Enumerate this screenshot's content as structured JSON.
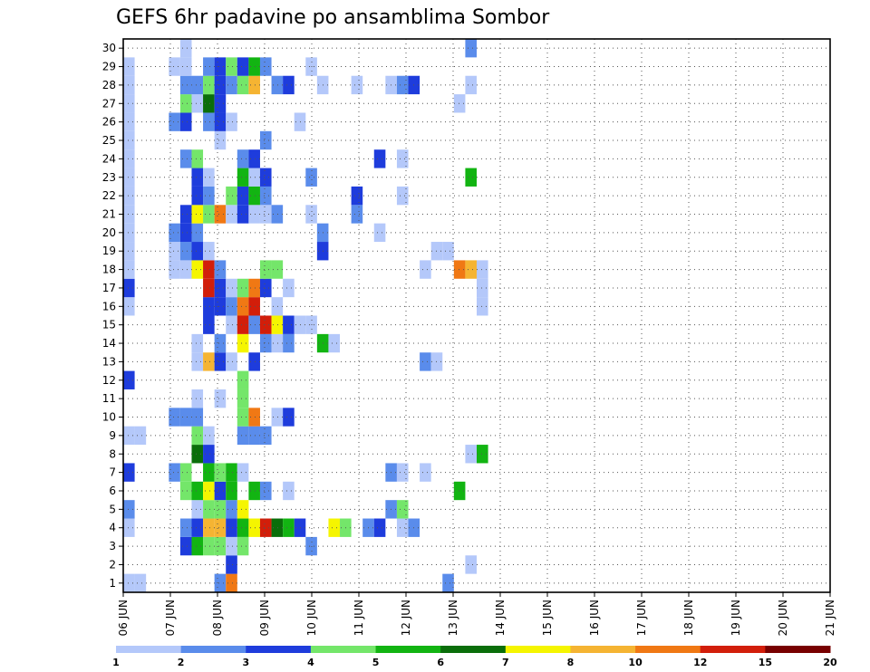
{
  "chart_data": {
    "type": "heatmap",
    "title": "GEFS 6hr padavine po ansamblima Sombor",
    "xlabel": "",
    "ylabel": "",
    "y_ticks": [
      "1",
      "2",
      "3",
      "4",
      "5",
      "6",
      "7",
      "8",
      "9",
      "10",
      "11",
      "12",
      "13",
      "14",
      "15",
      "16",
      "17",
      "18",
      "19",
      "20",
      "21",
      "22",
      "23",
      "24",
      "25",
      "26",
      "27",
      "28",
      "29",
      "30"
    ],
    "x_ticks": [
      "06 JUN",
      "07 JUN",
      "08 JUN",
      "09 JUN",
      "10 JUN",
      "11 JUN",
      "12 JUN",
      "13 JUN",
      "14 JUN",
      "15 JUN",
      "16 JUN",
      "17 JUN",
      "18 JUN",
      "19 JUN",
      "20 JUN",
      "21 JUN"
    ],
    "x_range_days": [
      0,
      15
    ],
    "steps_per_day": 4,
    "y_range": [
      0,
      30
    ],
    "grid": true,
    "colorbar": {
      "labels": [
        "1",
        "2",
        "3",
        "4",
        "5",
        "6",
        "7",
        "8",
        "10",
        "12",
        "15",
        "20"
      ],
      "colors": [
        "#b4c8fa",
        "#5a8ceb",
        "#1e3cdc",
        "#74e66a",
        "#12b412",
        "#0a6e0a",
        "#f5f500",
        "#f5b432",
        "#f07814",
        "#d21e0a",
        "#780000"
      ]
    },
    "cells": [
      {
        "member": 0,
        "step": 0,
        "level": 1
      },
      {
        "member": 0,
        "step": 1,
        "level": 1
      },
      {
        "member": 0,
        "step": 8,
        "level": 2
      },
      {
        "member": 0,
        "step": 9,
        "level": 10
      },
      {
        "member": 0,
        "step": 28,
        "level": 2
      },
      {
        "member": 1,
        "step": 9,
        "level": 3
      },
      {
        "member": 1,
        "step": 30,
        "level": 1
      },
      {
        "member": 2,
        "step": 5,
        "level": 3
      },
      {
        "member": 2,
        "step": 6,
        "level": 5
      },
      {
        "member": 2,
        "step": 7,
        "level": 4
      },
      {
        "member": 2,
        "step": 8,
        "level": 4
      },
      {
        "member": 2,
        "step": 9,
        "level": 1
      },
      {
        "member": 2,
        "step": 10,
        "level": 4
      },
      {
        "member": 2,
        "step": 16,
        "level": 2
      },
      {
        "member": 3,
        "step": 0,
        "level": 1
      },
      {
        "member": 3,
        "step": 5,
        "level": 2
      },
      {
        "member": 3,
        "step": 6,
        "level": 3
      },
      {
        "member": 3,
        "step": 7,
        "level": 8
      },
      {
        "member": 3,
        "step": 8,
        "level": 8
      },
      {
        "member": 3,
        "step": 9,
        "level": 3
      },
      {
        "member": 3,
        "step": 10,
        "level": 5
      },
      {
        "member": 3,
        "step": 11,
        "level": 7
      },
      {
        "member": 3,
        "step": 12,
        "level": 14
      },
      {
        "member": 3,
        "step": 13,
        "level": 6
      },
      {
        "member": 3,
        "step": 14,
        "level": 5
      },
      {
        "member": 3,
        "step": 15,
        "level": 3
      },
      {
        "member": 3,
        "step": 18,
        "level": 7
      },
      {
        "member": 3,
        "step": 19,
        "level": 4
      },
      {
        "member": 3,
        "step": 21,
        "level": 2
      },
      {
        "member": 3,
        "step": 22,
        "level": 3
      },
      {
        "member": 3,
        "step": 24,
        "level": 1
      },
      {
        "member": 3,
        "step": 25,
        "level": 2
      },
      {
        "member": 4,
        "step": 0,
        "level": 2
      },
      {
        "member": 4,
        "step": 6,
        "level": 1
      },
      {
        "member": 4,
        "step": 7,
        "level": 4
      },
      {
        "member": 4,
        "step": 8,
        "level": 4
      },
      {
        "member": 4,
        "step": 9,
        "level": 2
      },
      {
        "member": 4,
        "step": 10,
        "level": 7
      },
      {
        "member": 4,
        "step": 23,
        "level": 2
      },
      {
        "member": 4,
        "step": 24,
        "level": 4
      },
      {
        "member": 5,
        "step": 5,
        "level": 4
      },
      {
        "member": 5,
        "step": 6,
        "level": 5
      },
      {
        "member": 5,
        "step": 7,
        "level": 7
      },
      {
        "member": 5,
        "step": 8,
        "level": 3
      },
      {
        "member": 5,
        "step": 9,
        "level": 5
      },
      {
        "member": 5,
        "step": 11,
        "level": 5
      },
      {
        "member": 5,
        "step": 12,
        "level": 2
      },
      {
        "member": 5,
        "step": 14,
        "level": 1
      },
      {
        "member": 5,
        "step": 29,
        "level": 5
      },
      {
        "member": 6,
        "step": 0,
        "level": 3
      },
      {
        "member": 6,
        "step": 4,
        "level": 2
      },
      {
        "member": 6,
        "step": 5,
        "level": 4
      },
      {
        "member": 6,
        "step": 7,
        "level": 5
      },
      {
        "member": 6,
        "step": 8,
        "level": 4
      },
      {
        "member": 6,
        "step": 9,
        "level": 5
      },
      {
        "member": 6,
        "step": 10,
        "level": 1
      },
      {
        "member": 6,
        "step": 23,
        "level": 2
      },
      {
        "member": 6,
        "step": 24,
        "level": 1
      },
      {
        "member": 6,
        "step": 26,
        "level": 1
      },
      {
        "member": 7,
        "step": 6,
        "level": 6
      },
      {
        "member": 7,
        "step": 7,
        "level": 3
      },
      {
        "member": 7,
        "step": 30,
        "level": 1
      },
      {
        "member": 7,
        "step": 31,
        "level": 5
      },
      {
        "member": 8,
        "step": 0,
        "level": 1
      },
      {
        "member": 8,
        "step": 1,
        "level": 1
      },
      {
        "member": 8,
        "step": 6,
        "level": 4
      },
      {
        "member": 8,
        "step": 7,
        "level": 1
      },
      {
        "member": 8,
        "step": 10,
        "level": 2
      },
      {
        "member": 8,
        "step": 11,
        "level": 2
      },
      {
        "member": 8,
        "step": 12,
        "level": 2
      },
      {
        "member": 9,
        "step": 4,
        "level": 2
      },
      {
        "member": 9,
        "step": 5,
        "level": 2
      },
      {
        "member": 9,
        "step": 6,
        "level": 2
      },
      {
        "member": 9,
        "step": 10,
        "level": 4
      },
      {
        "member": 9,
        "step": 11,
        "level": 10
      },
      {
        "member": 9,
        "step": 13,
        "level": 1
      },
      {
        "member": 9,
        "step": 14,
        "level": 3
      },
      {
        "member": 10,
        "step": 6,
        "level": 1
      },
      {
        "member": 10,
        "step": 8,
        "level": 1
      },
      {
        "member": 10,
        "step": 10,
        "level": 4
      },
      {
        "member": 11,
        "step": 0,
        "level": 3
      },
      {
        "member": 11,
        "step": 10,
        "level": 4
      },
      {
        "member": 12,
        "step": 6,
        "level": 1
      },
      {
        "member": 12,
        "step": 7,
        "level": 8
      },
      {
        "member": 12,
        "step": 8,
        "level": 3
      },
      {
        "member": 12,
        "step": 9,
        "level": 1
      },
      {
        "member": 12,
        "step": 11,
        "level": 3
      },
      {
        "member": 12,
        "step": 26,
        "level": 2
      },
      {
        "member": 12,
        "step": 27,
        "level": 1
      },
      {
        "member": 13,
        "step": 6,
        "level": 1
      },
      {
        "member": 13,
        "step": 8,
        "level": 2
      },
      {
        "member": 13,
        "step": 10,
        "level": 7
      },
      {
        "member": 13,
        "step": 12,
        "level": 2
      },
      {
        "member": 13,
        "step": 13,
        "level": 1
      },
      {
        "member": 13,
        "step": 14,
        "level": 2
      },
      {
        "member": 13,
        "step": 17,
        "level": 5
      },
      {
        "member": 13,
        "step": 18,
        "level": 1
      },
      {
        "member": 14,
        "step": 7,
        "level": 3
      },
      {
        "member": 14,
        "step": 9,
        "level": 1
      },
      {
        "member": 14,
        "step": 10,
        "level": 14
      },
      {
        "member": 14,
        "step": 11,
        "level": 2
      },
      {
        "member": 14,
        "step": 12,
        "level": 13
      },
      {
        "member": 14,
        "step": 13,
        "level": 7
      },
      {
        "member": 14,
        "step": 14,
        "level": 3
      },
      {
        "member": 14,
        "step": 15,
        "level": 1
      },
      {
        "member": 14,
        "step": 16,
        "level": 1
      },
      {
        "member": 15,
        "step": 0,
        "level": 1
      },
      {
        "member": 15,
        "step": 7,
        "level": 3
      },
      {
        "member": 15,
        "step": 8,
        "level": 3
      },
      {
        "member": 15,
        "step": 9,
        "level": 2
      },
      {
        "member": 15,
        "step": 10,
        "level": 10
      },
      {
        "member": 15,
        "step": 11,
        "level": 12
      },
      {
        "member": 15,
        "step": 13,
        "level": 1
      },
      {
        "member": 15,
        "step": 31,
        "level": 1
      },
      {
        "member": 16,
        "step": 0,
        "level": 3
      },
      {
        "member": 16,
        "step": 7,
        "level": 12
      },
      {
        "member": 16,
        "step": 8,
        "level": 3
      },
      {
        "member": 16,
        "step": 9,
        "level": 1
      },
      {
        "member": 16,
        "step": 10,
        "level": 4
      },
      {
        "member": 16,
        "step": 11,
        "level": 11
      },
      {
        "member": 16,
        "step": 12,
        "level": 3
      },
      {
        "member": 16,
        "step": 14,
        "level": 1
      },
      {
        "member": 16,
        "step": 31,
        "level": 1
      },
      {
        "member": 17,
        "step": 0,
        "level": 1
      },
      {
        "member": 17,
        "step": 4,
        "level": 1
      },
      {
        "member": 17,
        "step": 5,
        "level": 1
      },
      {
        "member": 17,
        "step": 6,
        "level": 7
      },
      {
        "member": 17,
        "step": 7,
        "level": 12
      },
      {
        "member": 17,
        "step": 8,
        "level": 2
      },
      {
        "member": 17,
        "step": 12,
        "level": 4
      },
      {
        "member": 17,
        "step": 13,
        "level": 4
      },
      {
        "member": 17,
        "step": 26,
        "level": 1
      },
      {
        "member": 17,
        "step": 29,
        "level": 10
      },
      {
        "member": 17,
        "step": 30,
        "level": 8
      },
      {
        "member": 17,
        "step": 31,
        "level": 1
      },
      {
        "member": 18,
        "step": 0,
        "level": 1
      },
      {
        "member": 18,
        "step": 4,
        "level": 1
      },
      {
        "member": 18,
        "step": 5,
        "level": 2
      },
      {
        "member": 18,
        "step": 6,
        "level": 3
      },
      {
        "member": 18,
        "step": 7,
        "level": 1
      },
      {
        "member": 18,
        "step": 17,
        "level": 3
      },
      {
        "member": 18,
        "step": 27,
        "level": 1
      },
      {
        "member": 18,
        "step": 28,
        "level": 1
      },
      {
        "member": 19,
        "step": 0,
        "level": 1
      },
      {
        "member": 19,
        "step": 4,
        "level": 2
      },
      {
        "member": 19,
        "step": 5,
        "level": 3
      },
      {
        "member": 19,
        "step": 6,
        "level": 2
      },
      {
        "member": 19,
        "step": 17,
        "level": 2
      },
      {
        "member": 19,
        "step": 22,
        "level": 1
      },
      {
        "member": 20,
        "step": 0,
        "level": 1
      },
      {
        "member": 20,
        "step": 5,
        "level": 3
      },
      {
        "member": 20,
        "step": 6,
        "level": 7
      },
      {
        "member": 20,
        "step": 7,
        "level": 4
      },
      {
        "member": 20,
        "step": 8,
        "level": 10
      },
      {
        "member": 20,
        "step": 9,
        "level": 1
      },
      {
        "member": 20,
        "step": 10,
        "level": 3
      },
      {
        "member": 20,
        "step": 11,
        "level": 1
      },
      {
        "member": 20,
        "step": 12,
        "level": 1
      },
      {
        "member": 20,
        "step": 13,
        "level": 2
      },
      {
        "member": 20,
        "step": 16,
        "level": 1
      },
      {
        "member": 20,
        "step": 20,
        "level": 2
      },
      {
        "member": 21,
        "step": 0,
        "level": 1
      },
      {
        "member": 21,
        "step": 6,
        "level": 3
      },
      {
        "member": 21,
        "step": 7,
        "level": 2
      },
      {
        "member": 21,
        "step": 9,
        "level": 4
      },
      {
        "member": 21,
        "step": 10,
        "level": 3
      },
      {
        "member": 21,
        "step": 11,
        "level": 5
      },
      {
        "member": 21,
        "step": 12,
        "level": 2
      },
      {
        "member": 21,
        "step": 20,
        "level": 3
      },
      {
        "member": 21,
        "step": 24,
        "level": 1
      },
      {
        "member": 22,
        "step": 0,
        "level": 1
      },
      {
        "member": 22,
        "step": 6,
        "level": 3
      },
      {
        "member": 22,
        "step": 7,
        "level": 1
      },
      {
        "member": 22,
        "step": 10,
        "level": 5
      },
      {
        "member": 22,
        "step": 11,
        "level": 1
      },
      {
        "member": 22,
        "step": 12,
        "level": 3
      },
      {
        "member": 22,
        "step": 16,
        "level": 2
      },
      {
        "member": 22,
        "step": 30,
        "level": 5
      },
      {
        "member": 23,
        "step": 0,
        "level": 1
      },
      {
        "member": 23,
        "step": 5,
        "level": 2
      },
      {
        "member": 23,
        "step": 6,
        "level": 4
      },
      {
        "member": 23,
        "step": 10,
        "level": 2
      },
      {
        "member": 23,
        "step": 11,
        "level": 3
      },
      {
        "member": 23,
        "step": 22,
        "level": 3
      },
      {
        "member": 23,
        "step": 24,
        "level": 1
      },
      {
        "member": 24,
        "step": 0,
        "level": 1
      },
      {
        "member": 24,
        "step": 8,
        "level": 1
      },
      {
        "member": 24,
        "step": 12,
        "level": 2
      },
      {
        "member": 25,
        "step": 0,
        "level": 1
      },
      {
        "member": 25,
        "step": 4,
        "level": 2
      },
      {
        "member": 25,
        "step": 5,
        "level": 3
      },
      {
        "member": 25,
        "step": 7,
        "level": 2
      },
      {
        "member": 25,
        "step": 8,
        "level": 3
      },
      {
        "member": 25,
        "step": 9,
        "level": 1
      },
      {
        "member": 25,
        "step": 15,
        "level": 1
      },
      {
        "member": 26,
        "step": 0,
        "level": 1
      },
      {
        "member": 26,
        "step": 5,
        "level": 4
      },
      {
        "member": 26,
        "step": 6,
        "level": 1
      },
      {
        "member": 26,
        "step": 7,
        "level": 6
      },
      {
        "member": 26,
        "step": 8,
        "level": 3
      },
      {
        "member": 26,
        "step": 29,
        "level": 1
      },
      {
        "member": 27,
        "step": 0,
        "level": 1
      },
      {
        "member": 27,
        "step": 5,
        "level": 2
      },
      {
        "member": 27,
        "step": 6,
        "level": 2
      },
      {
        "member": 27,
        "step": 7,
        "level": 4
      },
      {
        "member": 27,
        "step": 8,
        "level": 3
      },
      {
        "member": 27,
        "step": 9,
        "level": 2
      },
      {
        "member": 27,
        "step": 10,
        "level": 4
      },
      {
        "member": 27,
        "step": 11,
        "level": 8
      },
      {
        "member": 27,
        "step": 13,
        "level": 2
      },
      {
        "member": 27,
        "step": 14,
        "level": 3
      },
      {
        "member": 27,
        "step": 17,
        "level": 1
      },
      {
        "member": 27,
        "step": 20,
        "level": 1
      },
      {
        "member": 27,
        "step": 23,
        "level": 1
      },
      {
        "member": 27,
        "step": 24,
        "level": 2
      },
      {
        "member": 27,
        "step": 25,
        "level": 3
      },
      {
        "member": 27,
        "step": 30,
        "level": 1
      },
      {
        "member": 28,
        "step": 0,
        "level": 1
      },
      {
        "member": 28,
        "step": 4,
        "level": 1
      },
      {
        "member": 28,
        "step": 5,
        "level": 1
      },
      {
        "member": 28,
        "step": 7,
        "level": 2
      },
      {
        "member": 28,
        "step": 8,
        "level": 3
      },
      {
        "member": 28,
        "step": 9,
        "level": 4
      },
      {
        "member": 28,
        "step": 10,
        "level": 3
      },
      {
        "member": 28,
        "step": 11,
        "level": 5
      },
      {
        "member": 28,
        "step": 12,
        "level": 2
      },
      {
        "member": 28,
        "step": 16,
        "level": 1
      },
      {
        "member": 29,
        "step": 5,
        "level": 1
      },
      {
        "member": 29,
        "step": 30,
        "level": 2
      }
    ]
  }
}
